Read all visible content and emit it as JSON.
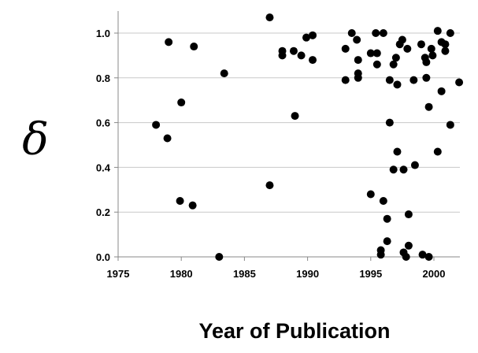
{
  "chart_data": {
    "type": "scatter",
    "xlabel": "Year of Publication",
    "ylabel": "δ",
    "xlim": [
      1975,
      2002
    ],
    "ylim": [
      0,
      1.1
    ],
    "xticks": [
      "1975",
      "1980",
      "1985",
      "1990",
      "1995",
      "2000"
    ],
    "yticks": [
      "0.0",
      "0.2",
      "0.4",
      "0.6",
      "0.8",
      "1.0"
    ],
    "grid": "horizontal",
    "colors": {
      "points": "#000000",
      "grid": "#c8c8c8",
      "axis": "#888888"
    },
    "points": [
      [
        1978.0,
        0.59
      ],
      [
        1978.9,
        0.53
      ],
      [
        1979.0,
        0.96
      ],
      [
        1979.9,
        0.25
      ],
      [
        1980.0,
        0.69
      ],
      [
        1980.9,
        0.23
      ],
      [
        1981.0,
        0.94
      ],
      [
        1983.0,
        0.0
      ],
      [
        1983.4,
        0.82
      ],
      [
        1987.0,
        1.07
      ],
      [
        1987.0,
        0.32
      ],
      [
        1988.0,
        0.92
      ],
      [
        1988.0,
        0.9
      ],
      [
        1988.9,
        0.92
      ],
      [
        1989.0,
        0.63
      ],
      [
        1989.5,
        0.9
      ],
      [
        1989.9,
        0.98
      ],
      [
        1990.4,
        0.99
      ],
      [
        1990.4,
        0.88
      ],
      [
        1993.0,
        0.93
      ],
      [
        1993.0,
        0.79
      ],
      [
        1993.5,
        1.0
      ],
      [
        1993.9,
        0.97
      ],
      [
        1994.0,
        0.88
      ],
      [
        1994.0,
        0.82
      ],
      [
        1994.0,
        0.8
      ],
      [
        1995.0,
        0.91
      ],
      [
        1995.0,
        0.28
      ],
      [
        1995.4,
        1.0
      ],
      [
        1995.5,
        0.86
      ],
      [
        1995.5,
        0.91
      ],
      [
        1995.8,
        0.03
      ],
      [
        1995.8,
        0.01
      ],
      [
        1996.0,
        1.0
      ],
      [
        1996.0,
        0.25
      ],
      [
        1996.3,
        0.17
      ],
      [
        1996.3,
        0.07
      ],
      [
        1996.5,
        0.79
      ],
      [
        1996.5,
        0.6
      ],
      [
        1996.8,
        0.86
      ],
      [
        1996.8,
        0.39
      ],
      [
        1997.0,
        0.89
      ],
      [
        1997.1,
        0.77
      ],
      [
        1997.1,
        0.47
      ],
      [
        1997.3,
        0.95
      ],
      [
        1997.5,
        0.97
      ],
      [
        1997.6,
        0.39
      ],
      [
        1997.6,
        0.02
      ],
      [
        1997.8,
        0.0
      ],
      [
        1997.9,
        0.93
      ],
      [
        1998.0,
        0.19
      ],
      [
        1998.0,
        0.05
      ],
      [
        1998.4,
        0.79
      ],
      [
        1998.5,
        0.41
      ],
      [
        1999.0,
        0.95
      ],
      [
        1999.1,
        0.01
      ],
      [
        1999.3,
        0.89
      ],
      [
        1999.4,
        0.87
      ],
      [
        1999.4,
        0.8
      ],
      [
        1999.6,
        0.67
      ],
      [
        1999.6,
        0.0
      ],
      [
        1999.8,
        0.93
      ],
      [
        1999.9,
        0.9
      ],
      [
        2000.3,
        1.01
      ],
      [
        2000.3,
        0.47
      ],
      [
        2000.6,
        0.96
      ],
      [
        2000.6,
        0.74
      ],
      [
        2000.9,
        0.92
      ],
      [
        2000.9,
        0.95
      ],
      [
        2001.3,
        1.0
      ],
      [
        2001.3,
        0.59
      ],
      [
        2002.0,
        0.78
      ]
    ]
  }
}
